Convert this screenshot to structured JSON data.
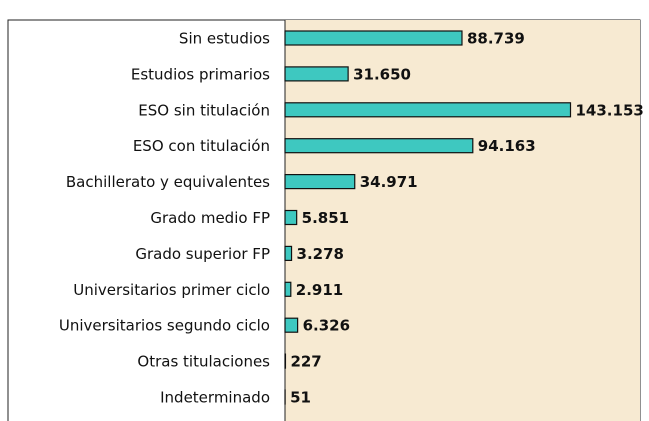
{
  "chart_data": {
    "type": "hbar",
    "categories": [
      "Sin estudios",
      "Estudios primarios",
      "ESO sin titulación",
      "ESO con titulación",
      "Bachillerato y equivalentes",
      "Grado medio FP",
      "Grado superior FP",
      "Universitarios primer ciclo",
      "Universitarios segundo ciclo",
      "Otras titulaciones",
      "Indeterminado"
    ],
    "values": [
      88739,
      31650,
      143153,
      94163,
      34971,
      5851,
      3278,
      2911,
      6326,
      227,
      51
    ],
    "value_labels": [
      "88.739",
      "31.650",
      "143.153",
      "94.163",
      "34.971",
      "5.851",
      "3.278",
      "2.911",
      "6.326",
      "227",
      "51"
    ],
    "color": "#3ec8c0",
    "xlim": [
      0,
      178000
    ]
  }
}
